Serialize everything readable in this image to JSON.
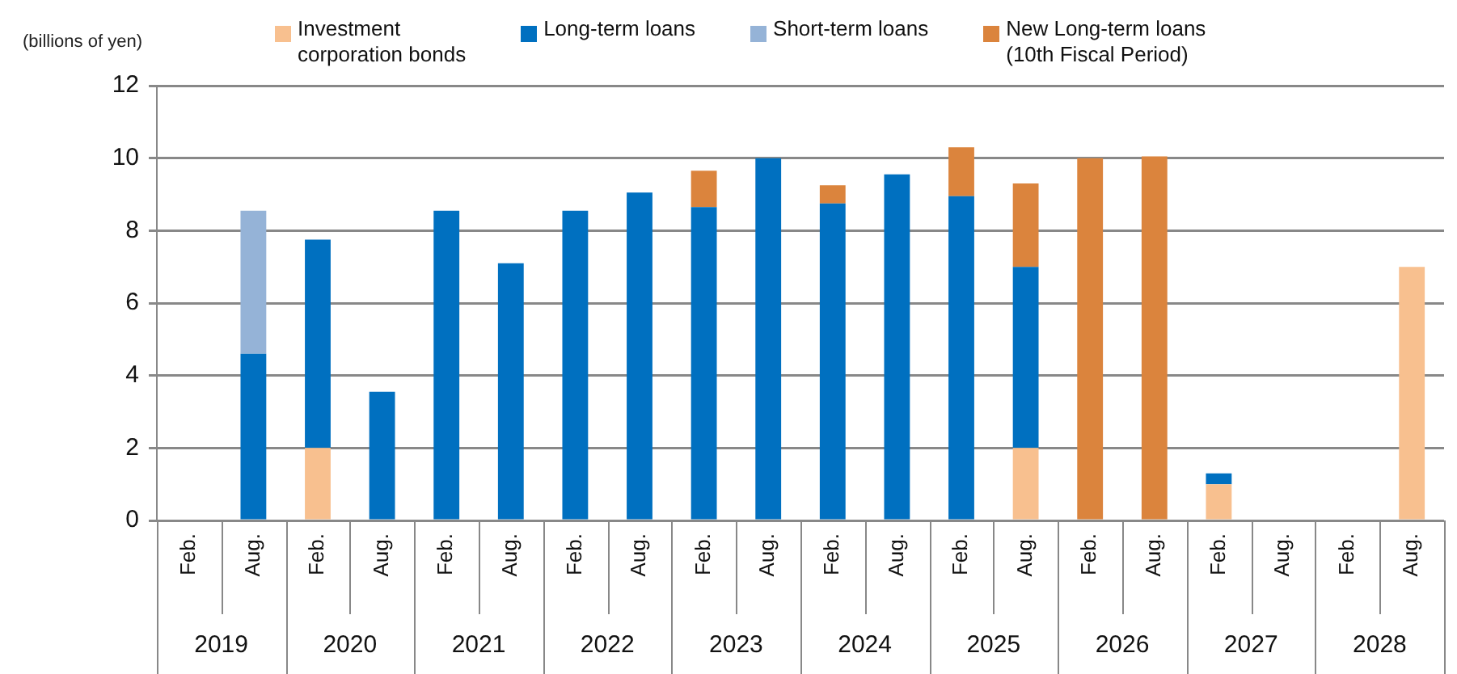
{
  "chart_data": {
    "type": "bar",
    "stacked": true,
    "ylabel": "(billions of yen)",
    "categories": [
      "Feb.",
      "Aug.",
      "Feb.",
      "Aug.",
      "Feb.",
      "Aug.",
      "Feb.",
      "Aug.",
      "Feb.",
      "Aug.",
      "Feb.",
      "Aug.",
      "Feb.",
      "Aug.",
      "Feb.",
      "Aug.",
      "Feb.",
      "Aug.",
      "Feb.",
      "Aug."
    ],
    "series": [
      {
        "name": "Investment\ncorporation bonds",
        "color": "#f8c08f",
        "values": [
          null,
          null,
          2.0,
          null,
          null,
          null,
          null,
          null,
          null,
          null,
          null,
          null,
          null,
          2.0,
          null,
          null,
          1.0,
          null,
          null,
          7.0
        ]
      },
      {
        "name": "Long-term loans",
        "color": "#0070c0",
        "values": [
          null,
          4.6,
          5.75,
          3.55,
          8.55,
          7.1,
          8.55,
          9.05,
          8.65,
          10.0,
          8.75,
          9.55,
          8.95,
          5.0,
          null,
          null,
          0.3,
          null,
          null,
          null
        ]
      },
      {
        "name": "Short-term loans",
        "color": "#95b3d7",
        "values": [
          null,
          3.95,
          null,
          null,
          null,
          null,
          null,
          null,
          null,
          null,
          null,
          null,
          null,
          null,
          null,
          null,
          null,
          null,
          null,
          null
        ]
      },
      {
        "name": "New Long-term loans\n(10th Fiscal Period)",
        "color": "#db843d",
        "values": [
          null,
          null,
          null,
          null,
          null,
          null,
          null,
          null,
          1.0,
          null,
          0.5,
          null,
          1.35,
          2.3,
          10.0,
          10.05,
          null,
          null,
          null,
          null
        ]
      }
    ],
    "annotations": [
      "2019",
      "2020",
      "2021",
      "2022",
      "2023",
      "2024",
      "2025",
      "2026",
      "2027",
      "2028"
    ],
    "ylim": [
      0,
      12
    ],
    "yticks": [
      0,
      2,
      4,
      6,
      8,
      10,
      12
    ],
    "grid": "y",
    "legend": "top"
  }
}
